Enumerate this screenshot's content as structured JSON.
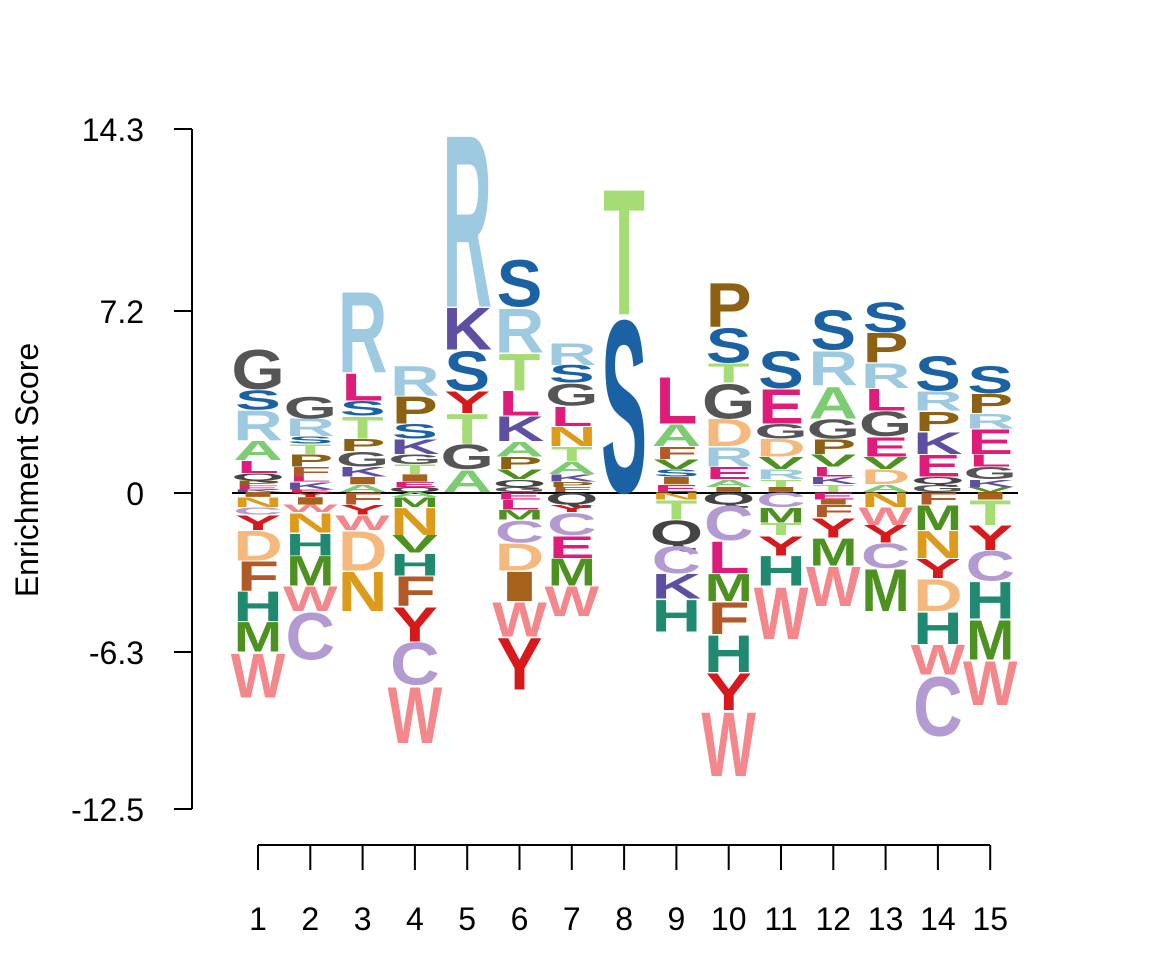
{
  "chart_data": {
    "type": "sequence-logo",
    "title": "",
    "xlabel": "",
    "ylabel": "Enrichment Score",
    "ylim": [
      -12.5,
      14.3
    ],
    "y_ticks": [
      "14.3",
      "7.2",
      "0",
      "-6.3",
      "-12.5"
    ],
    "y_tick_values": [
      14.3,
      7.2,
      0,
      -6.3,
      -12.5
    ],
    "x_categories": [
      "1",
      "2",
      "3",
      "4",
      "5",
      "6",
      "7",
      "8",
      "9",
      "10",
      "11",
      "12",
      "13",
      "14",
      "15"
    ],
    "residue_colors": {
      "A": "#7ccc71",
      "C": "#b39ad1",
      "D": "#f5b97e",
      "E": "#e01c7b",
      "F": "#b15a28",
      "G": "#555555",
      "H": "#1f8a70",
      "I": "#a6611a",
      "K": "#5e4fa2",
      "L": "#e01c7b",
      "M": "#4d9221",
      "N": "#dc9b1a",
      "P": "#8c6114",
      "Q": "#444444",
      "R": "#9ecae1",
      "S": "#1a62a3",
      "T": "#a5dc74",
      "V": "#4d9221",
      "W": "#f4878b",
      "Y": "#d7191c"
    },
    "positions": [
      {
        "pos": "1",
        "up": [
          [
            "G",
            1.6
          ],
          [
            "S",
            0.8
          ],
          [
            "R",
            1.2
          ],
          [
            "A",
            0.8
          ],
          [
            "L",
            0.5
          ],
          [
            "Q",
            0.3
          ],
          [
            "P",
            0.2
          ],
          [
            "E",
            0.15
          ],
          [
            "K",
            0.1
          ]
        ],
        "down": [
          [
            "I",
            0.2
          ],
          [
            "N",
            0.4
          ],
          [
            "C",
            0.3
          ],
          [
            "Y",
            0.6
          ],
          [
            "D",
            1.2
          ],
          [
            "F",
            1.2
          ],
          [
            "H",
            1.2
          ],
          [
            "M",
            1.2
          ],
          [
            "W",
            1.8
          ]
        ]
      },
      {
        "pos": "2",
        "up": [
          [
            "G",
            0.9
          ],
          [
            "R",
            0.7
          ],
          [
            "S",
            0.3
          ],
          [
            "T",
            0.4
          ],
          [
            "P",
            0.5
          ],
          [
            "F",
            0.4
          ],
          [
            "L",
            0.2
          ],
          [
            "K",
            0.3
          ],
          [
            "E",
            0.1
          ]
        ],
        "down": [
          [
            "Y",
            0.2
          ],
          [
            "I",
            0.3
          ],
          [
            "W",
            0.3
          ],
          [
            "N",
            0.8
          ],
          [
            "H",
            0.9
          ],
          [
            "M",
            1.2
          ],
          [
            "W",
            1.0
          ],
          [
            "C",
            1.9
          ]
        ]
      },
      {
        "pos": "3",
        "up": [
          [
            "R",
            3.3
          ],
          [
            "L",
            1.1
          ],
          [
            "S",
            0.6
          ],
          [
            "T",
            0.9
          ],
          [
            "P",
            0.5
          ],
          [
            "G",
            0.6
          ],
          [
            "K",
            0.4
          ],
          [
            "I",
            0.3
          ],
          [
            "A",
            0.3
          ]
        ],
        "down": [
          [
            "F",
            0.5
          ],
          [
            "Y",
            0.4
          ],
          [
            "W",
            0.6
          ],
          [
            "D",
            1.6
          ],
          [
            "N",
            1.6
          ]
        ]
      },
      {
        "pos": "4",
        "up": [
          [
            "R",
            1.2
          ],
          [
            "P",
            1.1
          ],
          [
            "S",
            0.6
          ],
          [
            "K",
            0.6
          ],
          [
            "G",
            0.4
          ],
          [
            "T",
            0.4
          ],
          [
            "I",
            0.3
          ],
          [
            "E",
            0.2
          ],
          [
            "Q",
            0.2
          ]
        ],
        "down": [
          [
            "A",
            0.2
          ],
          [
            "M",
            0.4
          ],
          [
            "N",
            1.1
          ],
          [
            "V",
            0.7
          ],
          [
            "H",
            0.9
          ],
          [
            "F",
            1.2
          ],
          [
            "Y",
            1.4
          ],
          [
            "C",
            1.7
          ],
          [
            "W",
            2.3
          ]
        ]
      },
      {
        "pos": "5",
        "up": [
          [
            "R",
            7.0
          ],
          [
            "K",
            1.7
          ],
          [
            "S",
            1.6
          ],
          [
            "Y",
            0.9
          ],
          [
            "T",
            1.2
          ],
          [
            "G",
            1.0
          ],
          [
            "A",
            0.9
          ]
        ]
      },
      {
        "pos": "6",
        "up": [
          [
            "S",
            1.9
          ],
          [
            "R",
            1.8
          ],
          [
            "T",
            1.5
          ],
          [
            "L",
            1.0
          ],
          [
            "K",
            1.0
          ],
          [
            "A",
            0.6
          ],
          [
            "P",
            0.5
          ],
          [
            "V",
            0.4
          ],
          [
            "Q",
            0.3
          ],
          [
            "G",
            0.2
          ]
        ],
        "down": [
          [
            "E",
            0.3
          ],
          [
            "L",
            0.4
          ],
          [
            "M",
            0.4
          ],
          [
            "C",
            0.9
          ],
          [
            "D",
            1.1
          ],
          [
            "I",
            1.2
          ],
          [
            "W",
            1.4
          ],
          [
            "Y",
            2.1
          ]
        ]
      },
      {
        "pos": "7",
        "up": [
          [
            "R",
            0.9
          ],
          [
            "S",
            0.7
          ],
          [
            "G",
            0.9
          ],
          [
            "L",
            0.8
          ],
          [
            "N",
            0.8
          ],
          [
            "T",
            0.6
          ],
          [
            "A",
            0.5
          ],
          [
            "K",
            0.3
          ],
          [
            "P",
            0.2
          ],
          [
            "F",
            0.2
          ]
        ],
        "down": [
          [
            "Q",
            0.5
          ],
          [
            "Y",
            0.3
          ],
          [
            "C",
            0.9
          ],
          [
            "E",
            0.9
          ],
          [
            "M",
            1.1
          ],
          [
            "W",
            1.2
          ]
        ]
      },
      {
        "pos": "8",
        "up": [
          [
            "T",
            5.1
          ],
          [
            "S",
            7.0
          ]
        ]
      },
      {
        "pos": "9",
        "up": [
          [
            "L",
            1.9
          ],
          [
            "A",
            0.9
          ],
          [
            "F",
            0.5
          ],
          [
            "V",
            0.4
          ],
          [
            "S",
            0.3
          ],
          [
            "I",
            0.3
          ],
          [
            "E",
            0.3
          ]
        ],
        "down": [
          [
            "N",
            0.3
          ],
          [
            "T",
            0.8
          ],
          [
            "Q",
            1.0
          ],
          [
            "C",
            1.1
          ],
          [
            "K",
            1.0
          ],
          [
            "H",
            1.3
          ]
        ]
      },
      {
        "pos": "10",
        "up": [
          [
            "P",
            1.8
          ],
          [
            "S",
            1.4
          ],
          [
            "T",
            0.8
          ],
          [
            "G",
            1.4
          ],
          [
            "D",
            1.1
          ],
          [
            "R",
            0.8
          ],
          [
            "E",
            0.5
          ],
          [
            "A",
            0.3
          ],
          [
            "I",
            0.2
          ]
        ],
        "down": [
          [
            "Q",
            0.5
          ],
          [
            "C",
            1.4
          ],
          [
            "L",
            1.3
          ],
          [
            "M",
            1.1
          ],
          [
            "F",
            1.3
          ],
          [
            "H",
            1.5
          ],
          [
            "Y",
            1.5
          ],
          [
            "W",
            2.6
          ]
        ]
      },
      {
        "pos": "11",
        "up": [
          [
            "S",
            1.5
          ],
          [
            "E",
            1.4
          ],
          [
            "G",
            0.6
          ],
          [
            "D",
            0.7
          ],
          [
            "V",
            0.5
          ],
          [
            "R",
            0.4
          ],
          [
            "T",
            0.3
          ],
          [
            "I",
            0.2
          ]
        ],
        "down": [
          [
            "C",
            0.6
          ],
          [
            "M",
            0.6
          ],
          [
            "T",
            0.5
          ],
          [
            "Y",
            0.8
          ],
          [
            "H",
            1.2
          ],
          [
            "W",
            2.1
          ]
        ]
      },
      {
        "pos": "12",
        "up": [
          [
            "S",
            1.6
          ],
          [
            "R",
            1.4
          ],
          [
            "A",
            1.3
          ],
          [
            "G",
            0.8
          ],
          [
            "P",
            0.6
          ],
          [
            "V",
            0.5
          ],
          [
            "L",
            0.4
          ],
          [
            "K",
            0.3
          ],
          [
            "T",
            0.3
          ]
        ],
        "down": [
          [
            "E",
            0.3
          ],
          [
            "I",
            0.2
          ],
          [
            "F",
            0.5
          ],
          [
            "Y",
            0.8
          ],
          [
            "M",
            1.1
          ],
          [
            "W",
            1.6
          ]
        ]
      },
      {
        "pos": "13",
        "up": [
          [
            "S",
            1.2
          ],
          [
            "P",
            1.2
          ],
          [
            "R",
            1.0
          ],
          [
            "L",
            0.9
          ],
          [
            "G",
            1.0
          ],
          [
            "E",
            0.8
          ],
          [
            "V",
            0.5
          ],
          [
            "D",
            0.6
          ],
          [
            "A",
            0.3
          ]
        ],
        "down": [
          [
            "N",
            0.6
          ],
          [
            "W",
            0.7
          ],
          [
            "Y",
            0.7
          ],
          [
            "C",
            1.0
          ],
          [
            "M",
            1.7
          ]
        ]
      },
      {
        "pos": "14",
        "up": [
          [
            "S",
            1.4
          ],
          [
            "R",
            0.8
          ],
          [
            "P",
            0.8
          ],
          [
            "K",
            0.9
          ],
          [
            "E",
            0.9
          ],
          [
            "Q",
            0.3
          ],
          [
            "G",
            0.3
          ]
        ],
        "down": [
          [
            "F",
            0.5
          ],
          [
            "M",
            1.0
          ],
          [
            "N",
            1.1
          ],
          [
            "Y",
            0.8
          ],
          [
            "D",
            1.3
          ],
          [
            "H",
            1.3
          ],
          [
            "W",
            1.2
          ],
          [
            "C",
            2.4
          ]
        ]
      },
      {
        "pos": "15",
        "up": [
          [
            "S",
            1.1
          ],
          [
            "P",
            0.8
          ],
          [
            "R",
            0.6
          ],
          [
            "E",
            1.0
          ],
          [
            "L",
            0.5
          ],
          [
            "G",
            0.5
          ],
          [
            "K",
            0.3
          ],
          [
            "V",
            0.2
          ]
        ],
        "down": [
          [
            "I",
            0.3
          ],
          [
            "T",
            1.0
          ],
          [
            "Y",
            1.0
          ],
          [
            "C",
            1.2
          ],
          [
            "H",
            1.5
          ],
          [
            "M",
            1.6
          ],
          [
            "W",
            1.8
          ]
        ]
      }
    ]
  }
}
